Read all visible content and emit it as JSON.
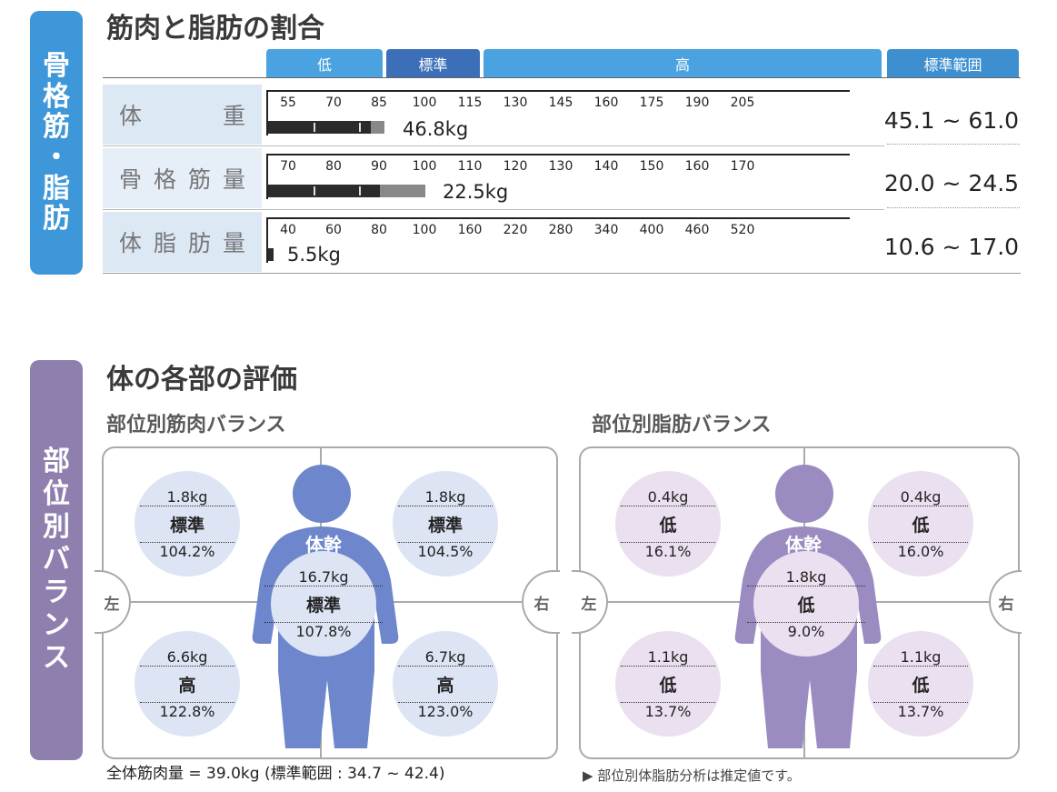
{
  "section1": {
    "side_label": [
      "骨",
      "格",
      "筋",
      "・",
      "脂",
      "肪"
    ],
    "title": "筋肉と脂肪の割合",
    "header": {
      "low": "低",
      "standard": "標準",
      "high": "高",
      "range": "標準範囲"
    },
    "rows": [
      {
        "label": [
          "体",
          "重"
        ],
        "ticks": [
          "55",
          "70",
          "85",
          "100",
          "115",
          "130",
          "145",
          "160",
          "175",
          "190",
          "205"
        ],
        "value": "46.8kg",
        "range": "45.1 ~ 61.0",
        "bar_fraction": 0.2,
        "dark_fraction": 0.88
      },
      {
        "label": [
          "骨",
          "格",
          "筋",
          "量"
        ],
        "ticks": [
          "70",
          "80",
          "90",
          "100",
          "110",
          "120",
          "130",
          "140",
          "150",
          "160",
          "170"
        ],
        "value": "22.5kg",
        "range": "20.0 ~ 24.5",
        "bar_fraction": 0.27,
        "dark_fraction": 0.71
      },
      {
        "label": [
          "体",
          "脂",
          "肪",
          "量"
        ],
        "ticks": [
          "40",
          "60",
          "80",
          "100",
          "160",
          "220",
          "280",
          "340",
          "400",
          "460",
          "520"
        ],
        "value": "5.5kg",
        "range": "10.6 ~ 17.0",
        "bar_fraction": 0.01,
        "dark_fraction": 1.0
      }
    ]
  },
  "section2": {
    "side_label": [
      "部",
      "位",
      "別",
      "バ",
      "ラ",
      "ン",
      "ス"
    ],
    "title": "体の各部の評価",
    "muscle": {
      "subtitle": "部位別筋肉バランス",
      "left_label": "左",
      "right_label": "右",
      "trunk_label": "体幹",
      "left_arm": {
        "value": "1.8kg",
        "level": "標準",
        "percent": "104.2%"
      },
      "right_arm": {
        "value": "1.8kg",
        "level": "標準",
        "percent": "104.5%"
      },
      "trunk": {
        "value": "16.7kg",
        "level": "標準",
        "percent": "107.8%"
      },
      "left_leg": {
        "value": "6.6kg",
        "level": "高",
        "percent": "122.8%"
      },
      "right_leg": {
        "value": "6.7kg",
        "level": "高",
        "percent": "123.0%"
      },
      "footnote": "全体筋肉量 = 39.0kg (標準範囲 : 34.7 ~ 42.4)"
    },
    "fat": {
      "subtitle": "部位別脂肪バランス",
      "left_label": "左",
      "right_label": "右",
      "trunk_label": "体幹",
      "left_arm": {
        "value": "0.4kg",
        "level": "低",
        "percent": "16.1%"
      },
      "right_arm": {
        "value": "0.4kg",
        "level": "低",
        "percent": "16.0%"
      },
      "trunk": {
        "value": "1.8kg",
        "level": "低",
        "percent": "9.0%"
      },
      "left_leg": {
        "value": "1.1kg",
        "level": "低",
        "percent": "13.7%"
      },
      "right_leg": {
        "value": "1.1kg",
        "level": "低",
        "percent": "13.7%"
      },
      "footnote": "▶ 部位別体脂肪分析は推定値です。"
    }
  },
  "colors": {
    "blue_tab": "#3d97d8",
    "purple_tab": "#8f7fae",
    "header_low": "#4aa3e0",
    "header_std": "#3d6fb8",
    "header_high": "#4aa3e0",
    "header_range": "#3d8fd0",
    "muscle_body": "#6d86cc",
    "fat_body": "#9a8cc0",
    "muscle_bubble": "#dde4f4",
    "fat_bubble": "#ebe0ef",
    "row_bg": "#dde8f5"
  }
}
